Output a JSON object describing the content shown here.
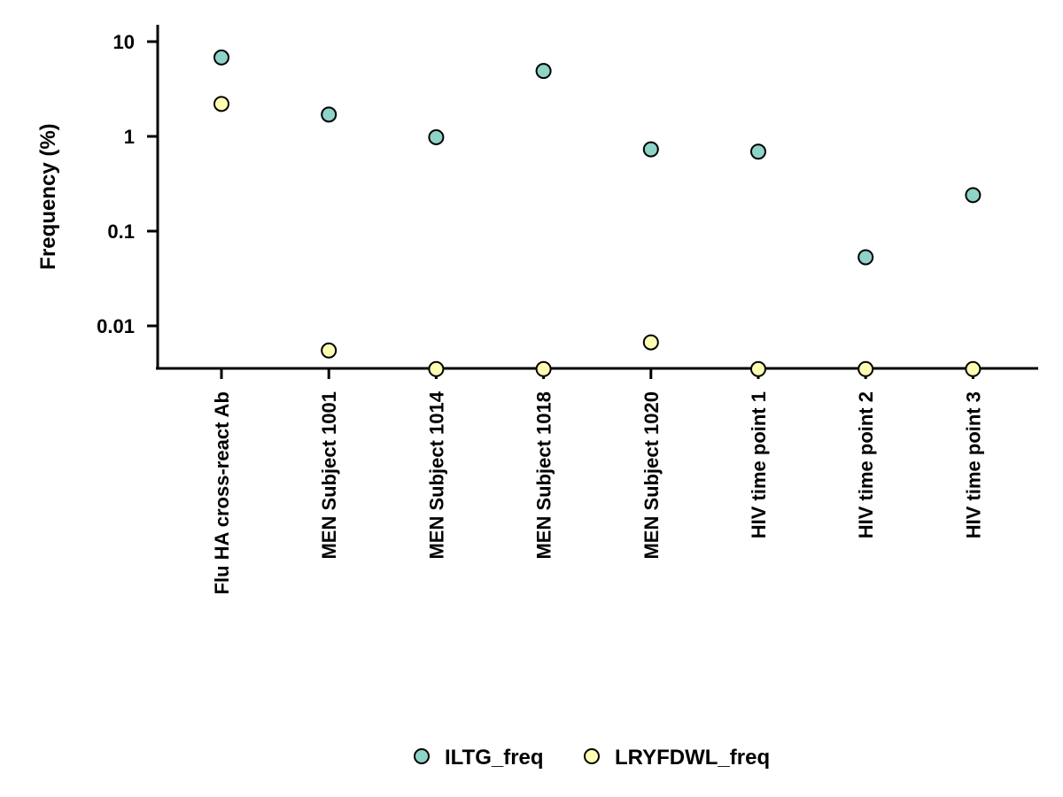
{
  "chart_data": {
    "type": "scatter",
    "title": "",
    "xlabel": "",
    "ylabel": "Frequency (%)",
    "yscale": "log",
    "ylim": [
      0.0035,
      15
    ],
    "yticks": [
      0.01,
      0.1,
      1,
      10
    ],
    "ytick_labels": [
      "0.01",
      "0.1",
      "1",
      "10"
    ],
    "grid": false,
    "legend_position": "bottom",
    "categories": [
      "Flu HA cross-react Ab",
      "MEN Subject 1001",
      "MEN Subject 1014",
      "MEN Subject 1018",
      "MEN Subject 1020",
      "HIV time point 1",
      "HIV time point 2",
      "HIV time point 3"
    ],
    "series": [
      {
        "name": "ILTG_freq",
        "color": "#8dd3c7",
        "values": [
          6.8,
          1.7,
          0.98,
          4.9,
          0.73,
          0.69,
          0.053,
          0.24
        ]
      },
      {
        "name": "LRYFDWL_freq",
        "color": "#ffffb3",
        "values": [
          2.2,
          0.0055,
          0.0035,
          0.0035,
          0.0067,
          0.0035,
          0.0035,
          0.0035
        ]
      }
    ]
  }
}
